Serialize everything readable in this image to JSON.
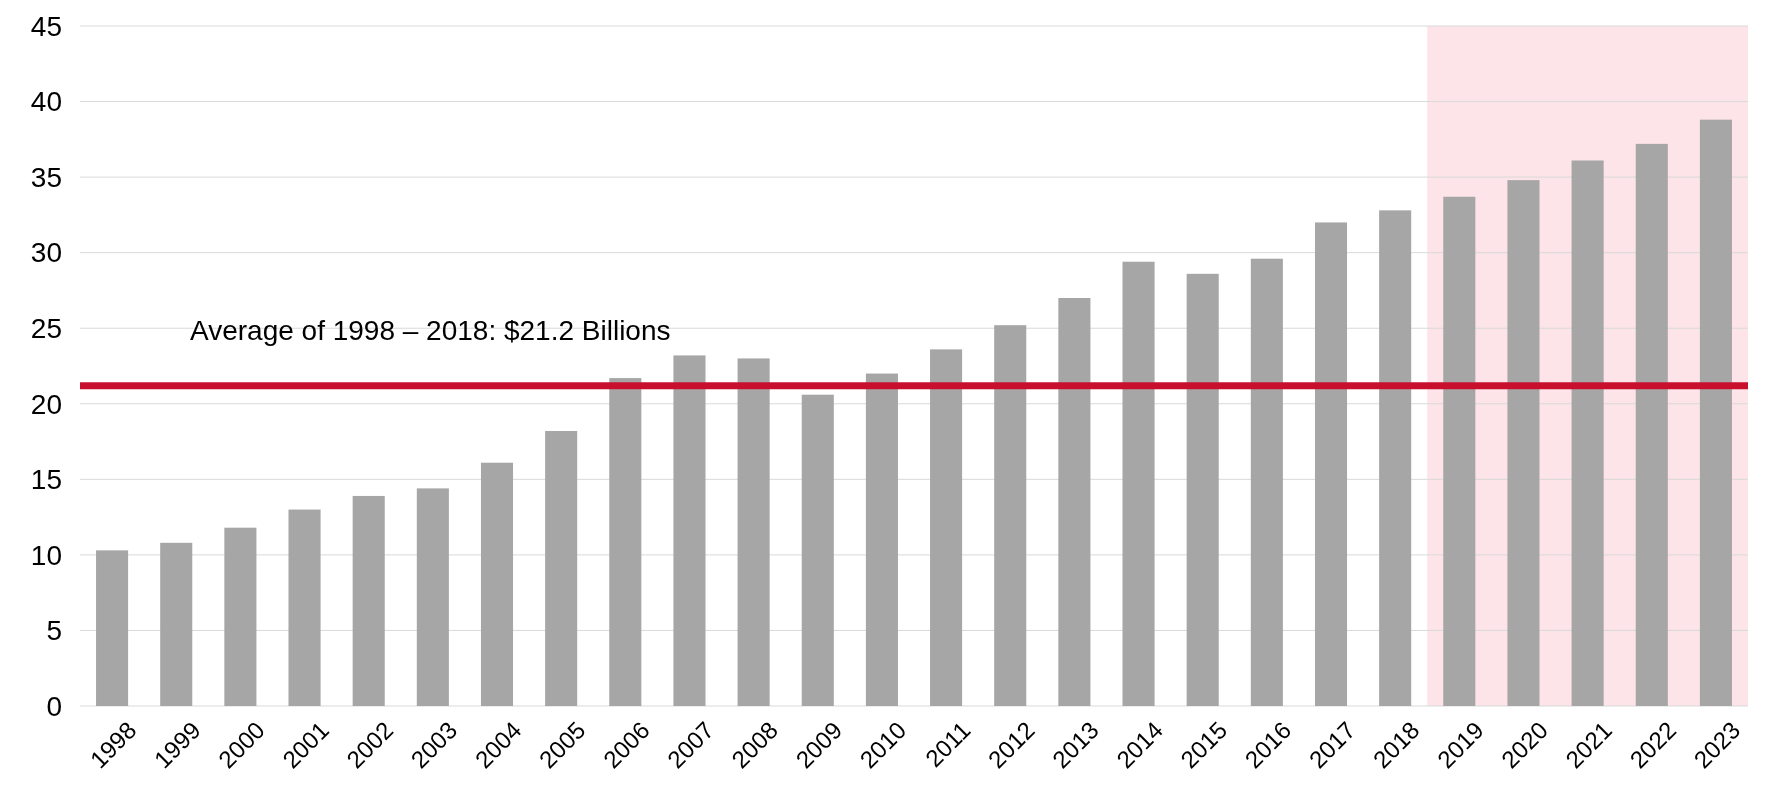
{
  "chart_data": {
    "type": "bar",
    "categories": [
      "1998",
      "1999",
      "2000",
      "2001",
      "2002",
      "2003",
      "2004",
      "2005",
      "2006",
      "2007",
      "2008",
      "2009",
      "2010",
      "2011",
      "2012",
      "2013",
      "2014",
      "2015",
      "2016",
      "2017",
      "2018",
      "2019",
      "2020",
      "2021",
      "2022",
      "2023"
    ],
    "values": [
      10.3,
      10.8,
      11.8,
      13.0,
      13.9,
      14.4,
      16.1,
      18.2,
      21.7,
      23.2,
      23.0,
      20.6,
      22.0,
      23.6,
      25.2,
      27.0,
      29.4,
      28.6,
      29.6,
      32.0,
      32.8,
      33.7,
      34.8,
      36.1,
      37.2,
      38.8
    ],
    "color": "#a6a6a6",
    "ylim": [
      0,
      45
    ],
    "yticks": [
      0,
      5,
      10,
      15,
      20,
      25,
      30,
      35,
      40,
      45
    ],
    "grid": "y",
    "ref_lines": [
      {
        "axis": "y",
        "value": 21.2,
        "label": "Average of 1998 – 2018: $21.2 Billions",
        "color": "#c8102e"
      }
    ],
    "bands": [
      {
        "axis": "x",
        "from": "2019",
        "to": "2023",
        "color": "#fce4e8"
      }
    ]
  }
}
